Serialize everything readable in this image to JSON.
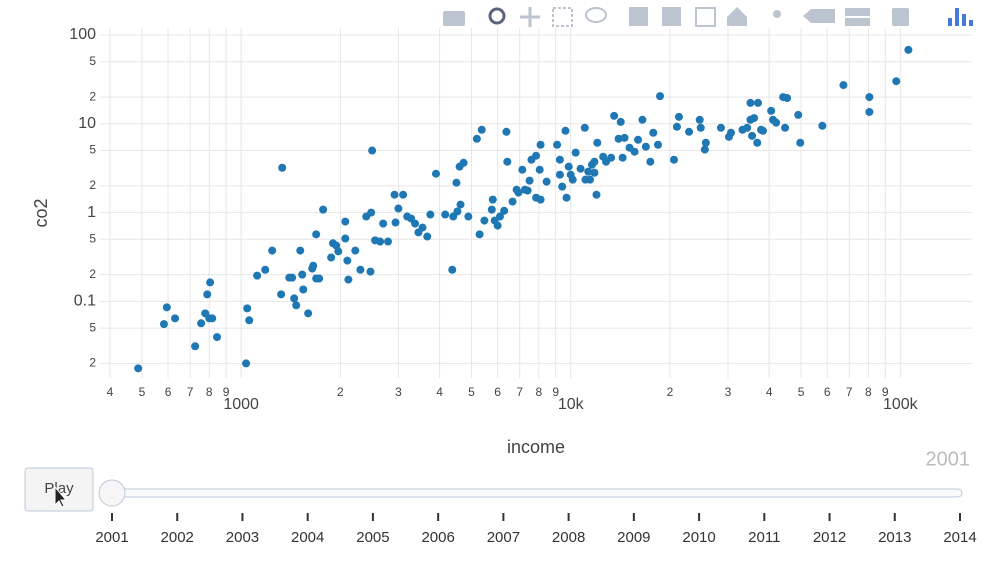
{
  "chart_data": {
    "type": "scatter",
    "x_label": "income",
    "y_label": "co2",
    "color": "#1f77b4",
    "grid": true,
    "xlog": true,
    "ylog": true,
    "xlim": [
      373,
      165000
    ],
    "ylim": [
      0.0137,
      120
    ],
    "xticks": [
      {
        "value": 400,
        "label": "4"
      },
      {
        "value": 500,
        "label": "5"
      },
      {
        "value": 600,
        "label": "6"
      },
      {
        "value": 700,
        "label": "7"
      },
      {
        "value": 800,
        "label": "8"
      },
      {
        "value": 900,
        "label": "9"
      },
      {
        "value": 1000,
        "label": "1000"
      },
      {
        "value": 2000,
        "label": "2"
      },
      {
        "value": 3000,
        "label": "3"
      },
      {
        "value": 4000,
        "label": "4"
      },
      {
        "value": 5000,
        "label": "5"
      },
      {
        "value": 6000,
        "label": "6"
      },
      {
        "value": 7000,
        "label": "7"
      },
      {
        "value": 8000,
        "label": "8"
      },
      {
        "value": 9000,
        "label": "9"
      },
      {
        "value": 10000,
        "label": "10k"
      },
      {
        "value": 20000,
        "label": "2"
      },
      {
        "value": 30000,
        "label": "3"
      },
      {
        "value": 40000,
        "label": "4"
      },
      {
        "value": 50000,
        "label": "5"
      },
      {
        "value": 60000,
        "label": "6"
      },
      {
        "value": 70000,
        "label": "7"
      },
      {
        "value": 80000,
        "label": "8"
      },
      {
        "value": 90000,
        "label": "9"
      },
      {
        "value": 100000,
        "label": "100k"
      }
    ],
    "yticks": [
      {
        "value": 0.02,
        "label": "2"
      },
      {
        "value": 0.05,
        "label": "5"
      },
      0.1,
      {
        "value": 0.2,
        "label": "2"
      },
      {
        "value": 0.5,
        "label": "5"
      },
      1,
      {
        "value": 2,
        "label": "2"
      },
      {
        "value": 5,
        "label": "5"
      },
      10,
      {
        "value": 20,
        "label": "2"
      },
      {
        "value": 50,
        "label": "5"
      },
      100
    ],
    "x": [
      487,
      583,
      595,
      630,
      725,
      756,
      778,
      789,
      805,
      800,
      817,
      845,
      1035,
      1043,
      1058,
      1118,
      1183,
      1242,
      1332,
      1322,
      1399,
      1428,
      1448,
      1469,
      1511,
      1532,
      1543,
      1597,
      1643,
      1654,
      1689,
      1724,
      1689,
      1773,
      1875,
      1900,
      1942,
      1971,
      2070,
      2070,
      2100,
      2115,
      2220,
      2300,
      2396,
      2468,
      2480,
      2497,
      2549,
      2640,
      2697,
      2790,
      2920,
      2940,
      3000,
      3100,
      3190,
      3280,
      3370,
      3450,
      3550,
      3670,
      3750,
      3900,
      4160,
      4370,
      4400,
      4500,
      4530,
      4600,
      4630,
      4730,
      4890,
      5190,
      5290,
      5370,
      5470,
      5760,
      5800,
      5880,
      6000,
      6100,
      6280,
      6380,
      6420,
      6660,
      6850,
      6940,
      7130,
      7260,
      7400,
      7500,
      7600,
      7850,
      7850,
      8050,
      8100,
      8100,
      8450,
      9090,
      9270,
      9270,
      9420,
      9640,
      9710,
      9860,
      10000,
      10140,
      10350,
      10710,
      11030,
      11080,
      11300,
      11440,
      11600,
      11800,
      11800,
      11970,
      12040,
      12540,
      12800,
      13260,
      13540,
      13970,
      14180,
      14370,
      14560,
      15080,
      15620,
      16000,
      16500,
      16900,
      17440,
      17800,
      18400,
      18660,
      20570,
      21000,
      21300,
      22850,
      24620,
      24800,
      25520,
      25700,
      28560,
      30200,
      30630,
      33200,
      34300,
      35100,
      35100,
      35500,
      36000,
      36800,
      37000,
      37800,
      38300,
      40560,
      41100,
      42000,
      44100,
      45340,
      44700,
      49000,
      49700,
      58000,
      67200,
      80560,
      80560,
      97200,
      105800
    ],
    "values": [
      0.0176,
      0.0554,
      0.0856,
      0.0644,
      0.0312,
      0.0566,
      0.0733,
      0.1198,
      0.1635,
      0.0644,
      0.0644,
      0.0396,
      0.02,
      0.0834,
      0.0612,
      0.195,
      0.227,
      0.373,
      3.2,
      0.12,
      0.185,
      0.185,
      0.108,
      0.0902,
      0.373,
      0.2,
      0.136,
      0.0733,
      0.234,
      0.252,
      0.181,
      0.181,
      0.569,
      1.08,
      0.312,
      0.451,
      0.426,
      0.366,
      0.51,
      0.792,
      0.288,
      0.176,
      0.373,
      0.227,
      0.902,
      0.216,
      1.0,
      5.0,
      0.487,
      0.472,
      0.752,
      0.472,
      1.59,
      0.772,
      1.11,
      1.59,
      0.902,
      0.856,
      0.752,
      0.598,
      0.678,
      0.537,
      0.95,
      2.74,
      0.95,
      0.227,
      0.902,
      2.17,
      1.03,
      3.29,
      1.23,
      3.64,
      0.902,
      6.78,
      0.569,
      8.56,
      0.813,
      1.08,
      1.4,
      0.813,
      0.714,
      0.902,
      1.05,
      8.13,
      3.74,
      1.33,
      1.81,
      1.68,
      3.04,
      1.81,
      1.77,
      2.29,
      3.94,
      4.37,
      1.47,
      3.04,
      5.81,
      1.4,
      2.23,
      5.81,
      3.94,
      2.67,
      1.96,
      8.34,
      1.47,
      3.29,
      2.67,
      2.35,
      4.73,
      3.12,
      9.02,
      2.35,
      2.89,
      2.35,
      3.46,
      3.74,
      2.81,
      1.59,
      6.12,
      4.26,
      3.74,
      4.15,
      12.3,
      6.78,
      10.5,
      4.15,
      6.95,
      5.38,
      4.85,
      6.61,
      11.1,
      5.52,
      3.74,
      7.93,
      5.81,
      20.5,
      3.94,
      9.25,
      11.98,
      8.13,
      11.1,
      9.02,
      5.13,
      6.12,
      9.02,
      7.13,
      7.93,
      8.56,
      9.02,
      17.2,
      11.1,
      7.32,
      11.6,
      6.12,
      17.2,
      8.56,
      8.34,
      14.0,
      11.1,
      10.3,
      20,
      19.5,
      9.02,
      12.6,
      6.12,
      9.5,
      27.3,
      20,
      13.6,
      30.2,
      68.1
    ]
  },
  "controls": {
    "play": "Play",
    "current": 2001,
    "steps": [
      2001,
      2002,
      2003,
      2004,
      2005,
      2006,
      2007,
      2008,
      2009,
      2010,
      2011,
      2012,
      2013,
      2014
    ]
  }
}
